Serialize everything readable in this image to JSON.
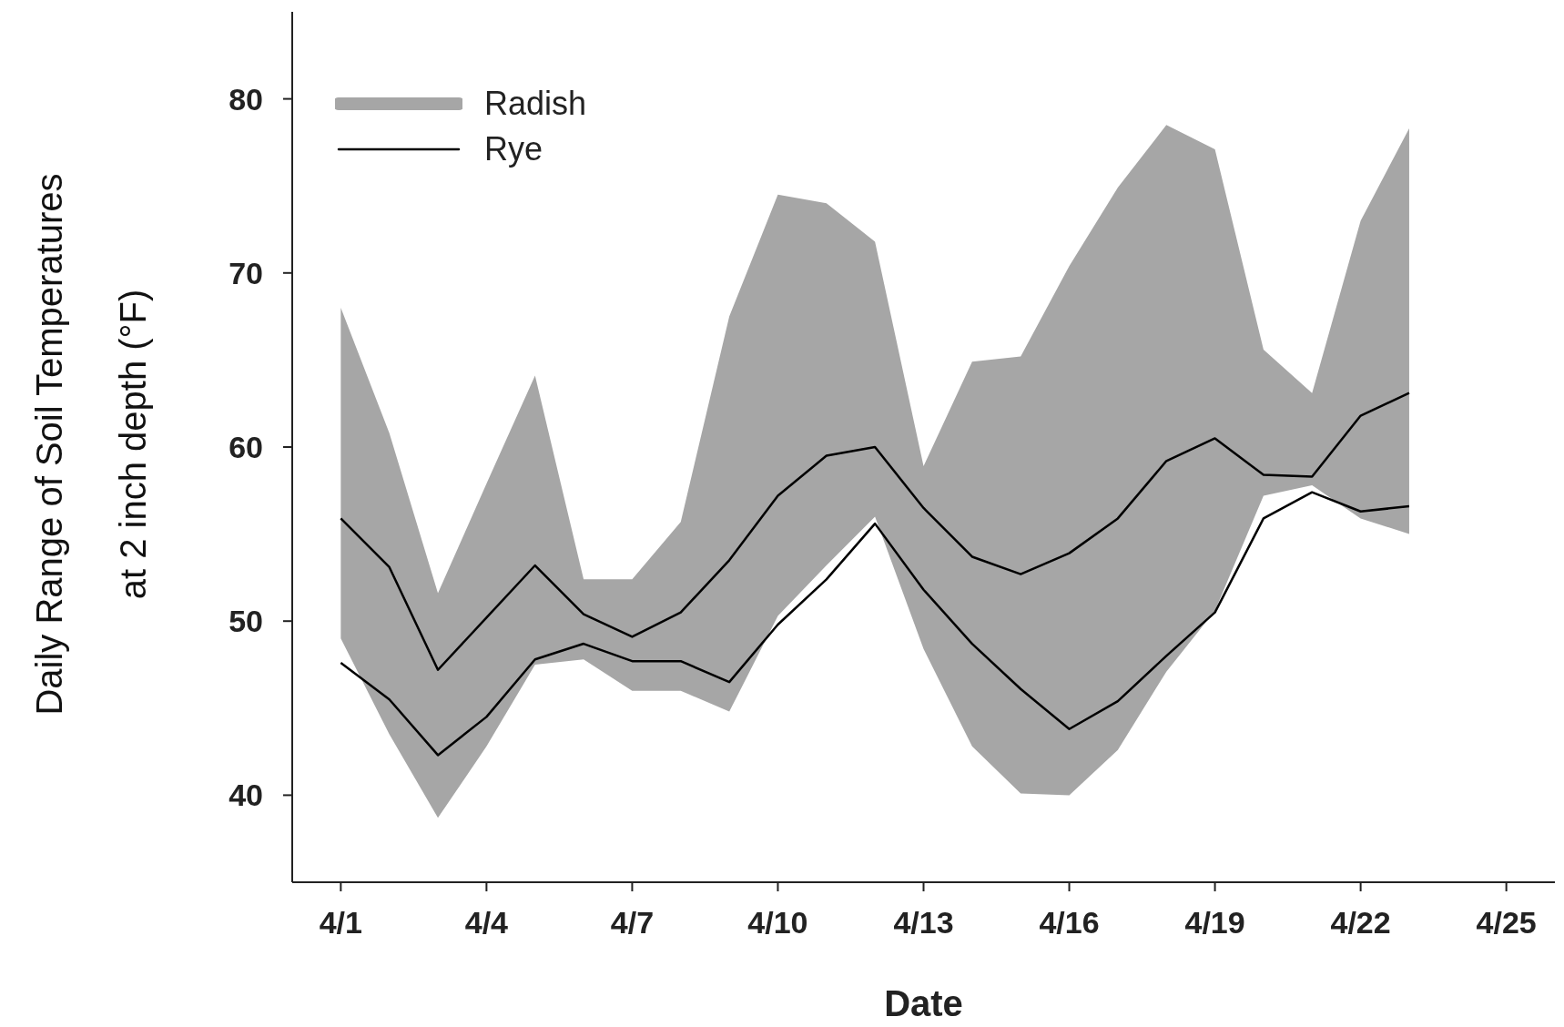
{
  "chart_data": {
    "type": "line",
    "xlabel": "Date",
    "ylabel": "Daily Range of Soil Temperatures\nat 2 inch depth (°F)",
    "x": [
      "--04-01",
      "--04-02",
      "--04-03",
      "--04-04",
      "--04-05",
      "--04-06",
      "--04-07",
      "--04-08",
      "--04-09",
      "--04-10",
      "--04-11",
      "--04-12",
      "--04-13",
      "--04-14",
      "--04-15",
      "--04-16",
      "--04-17",
      "--04-18",
      "--04-19",
      "--04-20",
      "--04-21",
      "--04-22",
      "--04-23"
    ],
    "series": [
      {
        "name": "Radish",
        "type": "area",
        "color": "#a6a6a6",
        "values": [
          null,
          null,
          null,
          null,
          null,
          null,
          null,
          null,
          null,
          null,
          null,
          null,
          null,
          null,
          null,
          null,
          null,
          null,
          null,
          null,
          null,
          null,
          null
        ],
        "lower": [
          49,
          43.5,
          38.7,
          42.8,
          47.5,
          47.8,
          46,
          46,
          44.8,
          50.3,
          53.2,
          56,
          48.4,
          42.8,
          40.1,
          40,
          42.6,
          47.1,
          50.6,
          57.2,
          57.8,
          55.9,
          55
        ],
        "upper": [
          68,
          60.8,
          51.6,
          57.9,
          64.1,
          52.4,
          52.4,
          55.7,
          67.5,
          74.5,
          74,
          71.8,
          58.9,
          64.9,
          65.2,
          70.4,
          74.9,
          78.5,
          77.1,
          65.6,
          63.1,
          73,
          78.3
        ]
      },
      {
        "name": "Rye",
        "type": "line",
        "color": "#000000",
        "values": [
          55.9,
          53.1,
          47.2,
          50.2,
          53.2,
          50.4,
          49.1,
          50.5,
          53.5,
          57.2,
          59.5,
          60,
          56.5,
          53.7,
          52.7,
          53.9,
          55.9,
          59.2,
          60.5,
          58.4,
          58.3,
          61.8,
          63.1
        ]
      },
      {
        "type": "line",
        "color": "#000000",
        "values": [
          47.6,
          45.5,
          42.3,
          44.5,
          47.8,
          48.7,
          47.7,
          47.7,
          46.5,
          49.8,
          52.4,
          55.6,
          51.8,
          48.7,
          46.1,
          43.8,
          45.4,
          48,
          50.5,
          55.9,
          57.4,
          56.3,
          56.6
        ]
      }
    ],
    "xlim": [
      "--03-31",
      "--04-26"
    ],
    "xticks": [
      {
        "value": "--04-01",
        "label": "4/1"
      },
      {
        "value": "--04-04",
        "label": "4/4"
      },
      {
        "value": "--04-07",
        "label": "4/7"
      },
      {
        "value": "--04-10",
        "label": "4/10"
      },
      {
        "value": "--04-13",
        "label": "4/13"
      },
      {
        "value": "--04-16",
        "label": "4/16"
      },
      {
        "value": "--04-19",
        "label": "4/19"
      },
      {
        "value": "--04-22",
        "label": "4/22"
      },
      {
        "value": "--04-25",
        "label": "4/25"
      }
    ],
    "ylim": [
      35,
      85
    ],
    "yticks": [
      40,
      50,
      60,
      70,
      80
    ],
    "legend": "top left",
    "marker": "none",
    "grid": false
  }
}
